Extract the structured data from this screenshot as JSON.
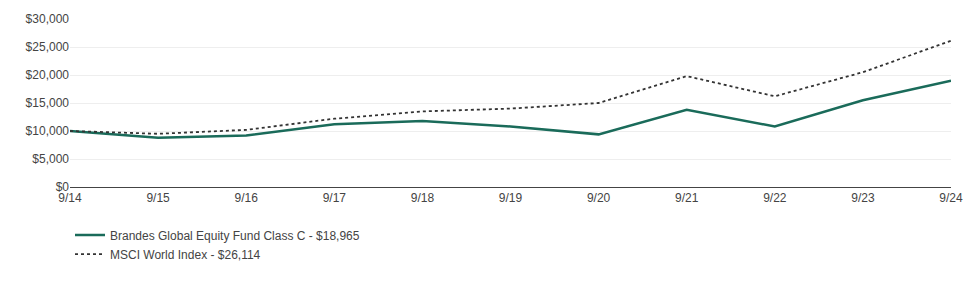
{
  "chart_data": {
    "type": "line",
    "categories": [
      "9/14",
      "9/15",
      "9/16",
      "9/17",
      "9/18",
      "9/19",
      "9/20",
      "9/21",
      "9/22",
      "9/23",
      "9/24"
    ],
    "series": [
      {
        "name": "Brandes Global Equity Fund Class C - $18,965",
        "color": "#1a6b5a",
        "line_style": "solid",
        "values": [
          10000,
          8800,
          9200,
          11200,
          11800,
          10800,
          9400,
          13800,
          10800,
          15500,
          18965
        ]
      },
      {
        "name": "MSCI World Index - $26,114",
        "color": "#333333",
        "line_style": "dotted",
        "values": [
          10000,
          9500,
          10200,
          12200,
          13500,
          14000,
          15000,
          19800,
          16200,
          20500,
          26114
        ]
      }
    ],
    "ylim": [
      0,
      30000
    ],
    "yticks": [
      {
        "value": 0,
        "label": "$0"
      },
      {
        "value": 5000,
        "label": "$5,000"
      },
      {
        "value": 10000,
        "label": "$10,000"
      },
      {
        "value": 15000,
        "label": "$15,000"
      },
      {
        "value": 20000,
        "label": "$20,000"
      },
      {
        "value": 25000,
        "label": "$25,000"
      },
      {
        "value": 30000,
        "label": "$30,000"
      }
    ],
    "grid": true,
    "legend": "bottom left"
  }
}
